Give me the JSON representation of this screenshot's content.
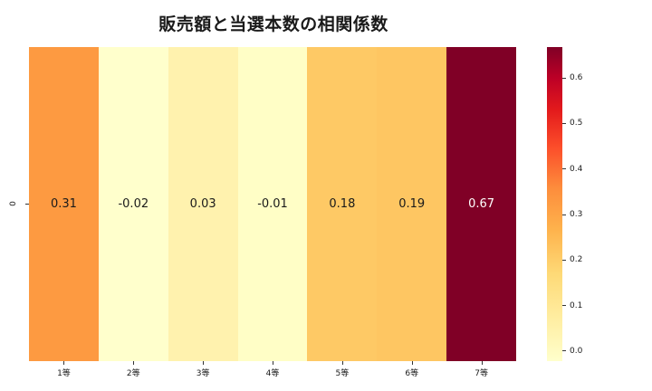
{
  "chart_data": {
    "type": "heatmap",
    "title": "販売額と当選本数の相関係数",
    "xlabel": "",
    "ylabel": "",
    "categories": [
      "1等",
      "2等",
      "3等",
      "4等",
      "5等",
      "6等",
      "7等"
    ],
    "rows": [
      "0"
    ],
    "values": [
      [
        0.31,
        -0.02,
        0.03,
        -0.01,
        0.18,
        0.19,
        0.67
      ]
    ],
    "value_labels": [
      "0.31",
      "-0.02",
      "0.03",
      "-0.01",
      "0.18",
      "0.19",
      "0.67"
    ],
    "colormap": "YlOrRd",
    "colorbar": {
      "vmin": -0.02,
      "vmax": 0.67,
      "ticks": [
        "0.0",
        "0.1",
        "0.2",
        "0.3",
        "0.4",
        "0.5",
        "0.6"
      ]
    },
    "cell_colors": [
      "#fd9a41",
      "#ffffcc",
      "#fff2ae",
      "#fffec6",
      "#fec965",
      "#fec662",
      "#800026"
    ],
    "text_colors": [
      "#1a1a1a",
      "#1a1a1a",
      "#1a1a1a",
      "#1a1a1a",
      "#1a1a1a",
      "#1a1a1a",
      "#ffffff"
    ]
  }
}
